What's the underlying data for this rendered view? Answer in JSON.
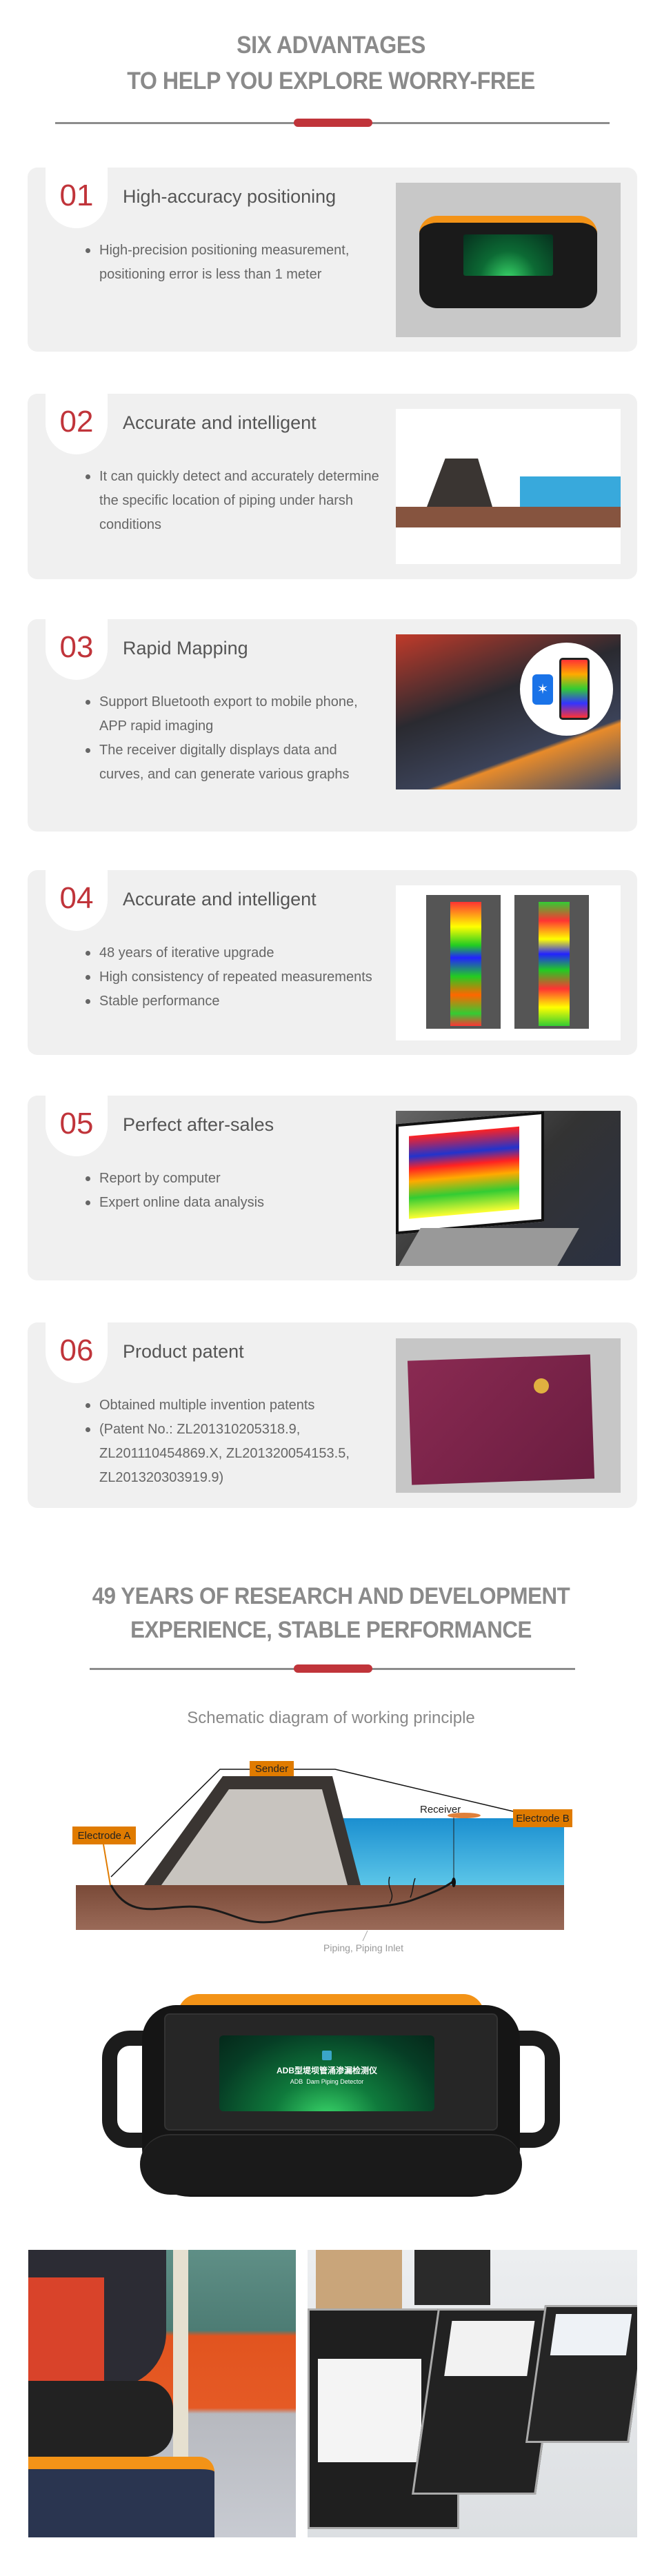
{
  "header": {
    "title_line1": "SIX ADVANTAGES",
    "title_line2": "TO HELP YOU EXPLORE WORRY-FREE",
    "accent_color": "#c0343a"
  },
  "cards": [
    {
      "number": "01",
      "title": "High-accuracy positioning",
      "bullets": [
        "High-precision positioning measurement, positioning error is less than 1 meter"
      ],
      "image": "device-photo"
    },
    {
      "number": "02",
      "title": "Accurate and intelligent",
      "bullets": [
        "It can quickly detect and accurately determine the specific location of piping under harsh conditions"
      ],
      "image": "principle-diagram"
    },
    {
      "number": "03",
      "title": "Rapid Mapping",
      "bullets": [
        "Support Bluetooth export to mobile phone, APP rapid imaging",
        "The receiver digitally displays data and curves, and can generate various graphs"
      ],
      "image": "bluetooth-field-photo"
    },
    {
      "number": "04",
      "title": "Accurate and intelligent",
      "bullets": [
        "48 years of iterative upgrade",
        "High consistency of repeated measurements",
        "Stable performance"
      ],
      "image": "heatmap-screens"
    },
    {
      "number": "05",
      "title": "Perfect after-sales",
      "bullets": [
        "Report by computer",
        "Expert online data analysis"
      ],
      "image": "laptop-analysis-photo"
    },
    {
      "number": "06",
      "title": "Product patent",
      "bullets": [
        "Obtained multiple invention patents",
        "(Patent No.: ZL201310205318.9, ZL201110454869.X, ZL201320054153.5, ZL201320303919.9)"
      ],
      "image": "patent-certificates-photo"
    }
  ],
  "section2": {
    "title_line1": "49 YEARS OF RESEARCH AND DEVELOPMENT",
    "title_line2": "EXPERIENCE, STABLE PERFORMANCE",
    "subtitle": "Schematic diagram of working principle"
  },
  "diagram": {
    "sender": "Sender",
    "receiver": "Receiver",
    "electrode_a": "Electrode A",
    "electrode_b": "Electrode B",
    "caption": "Piping, Piping Inlet",
    "label_color": "#e07b00"
  },
  "device": {
    "screen_title_cn": "ADB型堤坝管涌渗漏检测仪",
    "screen_title_en": "ADB  Dam Piping Detector"
  }
}
